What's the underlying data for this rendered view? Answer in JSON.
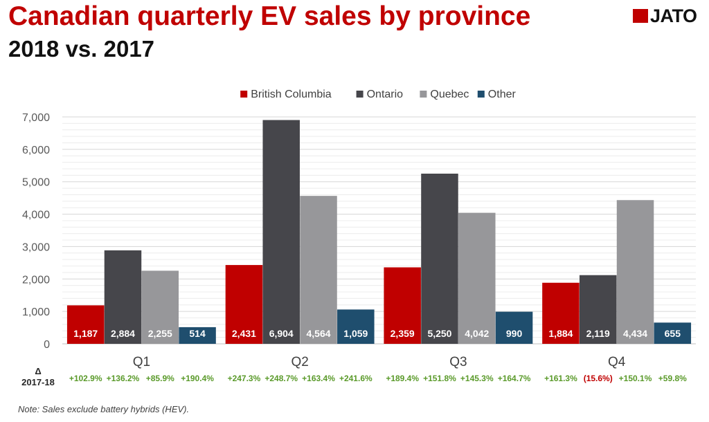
{
  "header": {
    "title": "Canadian quarterly EV sales by province",
    "subtitle": "2018 vs. 2017",
    "logo_text": "JATO"
  },
  "note": "Note: Sales exclude battery hybrids (HEV).",
  "chart_data": {
    "type": "bar",
    "title": "Canadian quarterly EV sales by province",
    "subtitle": "2018 vs. 2017",
    "categories": [
      "Q1",
      "Q2",
      "Q3",
      "Q4"
    ],
    "series": [
      {
        "name": "British Columbia",
        "color": "#c00000",
        "values": [
          1187,
          2431,
          2359,
          1884
        ],
        "labels": [
          "1,187",
          "2,431",
          "2,359",
          "1,884"
        ],
        "changes": [
          "+102.9%",
          "+247.3%",
          "+189.4%",
          "+161.3%"
        ]
      },
      {
        "name": "Ontario",
        "color": "#46464b",
        "values": [
          2884,
          6904,
          5250,
          2119
        ],
        "labels": [
          "2,884",
          "6,904",
          "5,250",
          "2,119"
        ],
        "changes": [
          "+136.2%",
          "+248.7%",
          "+151.8%",
          "(15.6%)"
        ]
      },
      {
        "name": "Quebec",
        "color": "#97979a",
        "values": [
          2255,
          4564,
          4042,
          4434
        ],
        "labels": [
          "2,255",
          "4,564",
          "4,042",
          "4,434"
        ],
        "changes": [
          "+85.9%",
          "+163.4%",
          "+145.3%",
          "+150.1%"
        ]
      },
      {
        "name": "Other",
        "color": "#1f4e6e",
        "values": [
          514,
          1059,
          990,
          655
        ],
        "labels": [
          "514",
          "1,059",
          "990",
          "655"
        ],
        "changes": [
          "+190.4%",
          "+241.6%",
          "+164.7%",
          "+59.8%"
        ]
      }
    ],
    "ylim": [
      0,
      7000
    ],
    "yticks": [
      0,
      1000,
      2000,
      3000,
      4000,
      5000,
      6000,
      7000
    ],
    "ytick_labels": [
      "0",
      "1,000",
      "2,000",
      "3,000",
      "4,000",
      "5,000",
      "6,000",
      "7,000"
    ],
    "grid": true,
    "legend": "top-center",
    "change_row_label": [
      "Δ",
      "2017-18"
    ],
    "positive_color": "#5a9a2a",
    "negative_color": "#c00000"
  }
}
